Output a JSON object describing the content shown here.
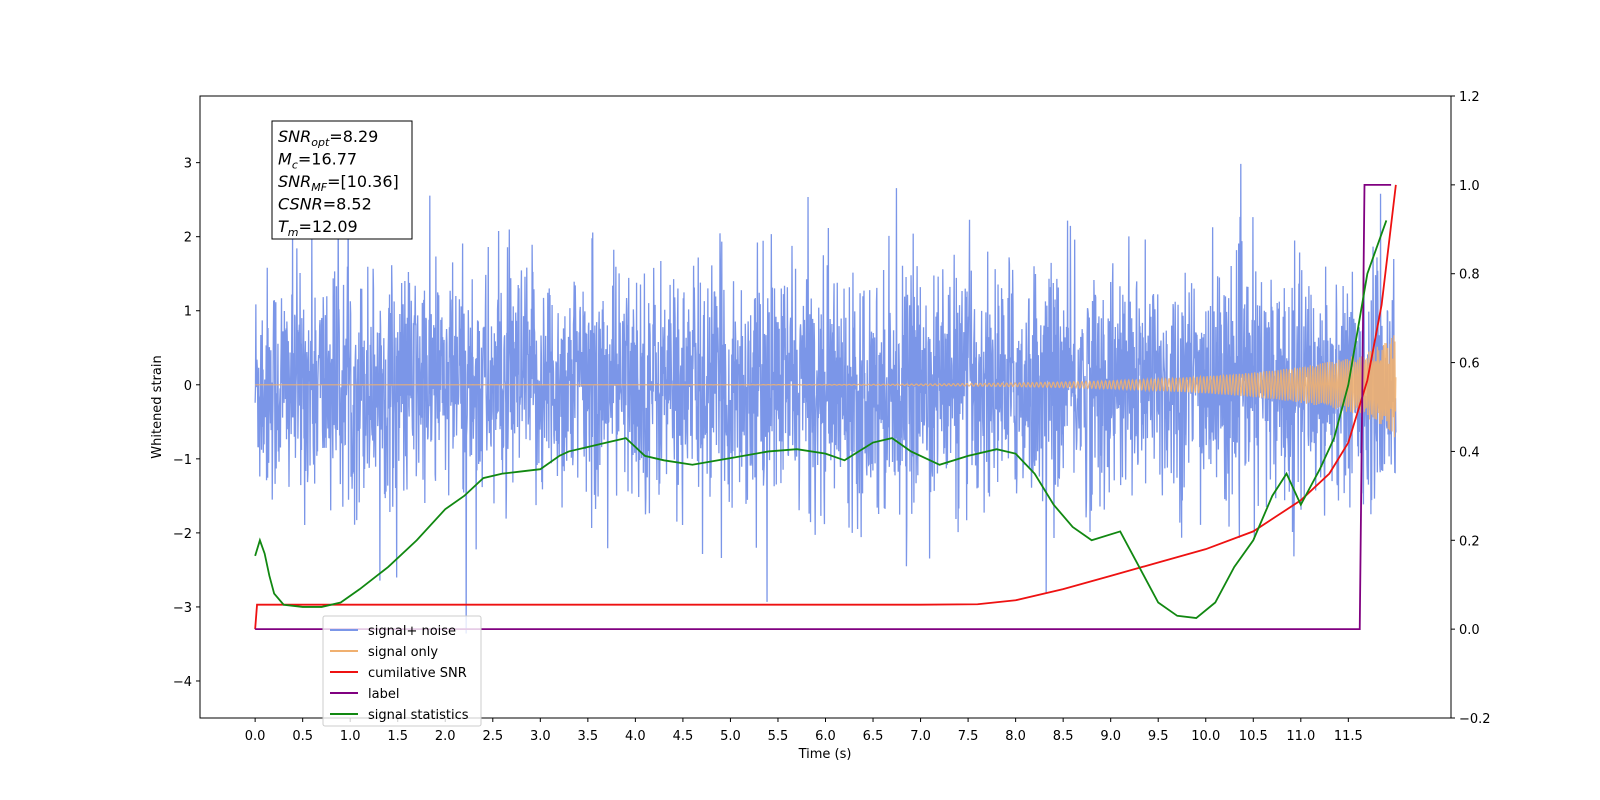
{
  "chart_data": {
    "type": "line",
    "xlabel": "Time (s)",
    "ylabel": "Whitened strain",
    "xlim": [
      -0.58,
      12.58
    ],
    "ylim": [
      -4.5,
      3.9
    ],
    "y2lim": [
      -0.2,
      1.2
    ],
    "grid": false,
    "legend_position": "lower-left",
    "x_ticks": [
      "0.0",
      "0.5",
      "1.0",
      "1.5",
      "2.0",
      "2.5",
      "3.0",
      "3.5",
      "4.0",
      "4.5",
      "5.0",
      "5.5",
      "6.0",
      "6.5",
      "7.0",
      "7.5",
      "8.0",
      "8.5",
      "9.0",
      "9.5",
      "10.0",
      "10.5",
      "11.0",
      "11.5"
    ],
    "y_ticks": [
      "3",
      "2",
      "1",
      "0",
      "−1",
      "−2",
      "−3",
      "−4"
    ],
    "y_tick_values": [
      3,
      2,
      1,
      0,
      -1,
      -2,
      -3,
      -4
    ],
    "y2_ticks": [
      "1.2",
      "1.0",
      "0.8",
      "0.6",
      "0.4",
      "0.2",
      "0.0",
      "−0.2"
    ],
    "y2_tick_values": [
      1.2,
      1.0,
      0.8,
      0.6,
      0.4,
      0.2,
      0.0,
      -0.2
    ],
    "annotation": [
      {
        "main": "SNR",
        "sub": "opt",
        "value": "=8.29"
      },
      {
        "main": "M",
        "sub": "c",
        "value": "=16.77"
      },
      {
        "main": "SNR",
        "sub": "MF",
        "value": "=[10.36]"
      },
      {
        "main": "CSNR",
        "sub": "",
        "value": "=8.52"
      },
      {
        "main": "T",
        "sub": "m",
        "value": "=12.09"
      }
    ],
    "series": [
      {
        "name": "signal+ noise",
        "color": "#7b96e8",
        "axis": "left",
        "description": "noise",
        "noise_std": 0.78,
        "t_end": 12.0
      },
      {
        "name": "signal only",
        "color": "#f0b070",
        "axis": "left",
        "description": "chirp",
        "t_end": 12.0,
        "final_amplitude": 0.75
      },
      {
        "name": "cumilative SNR",
        "color": "#ee1111",
        "axis": "right",
        "x": [
          0.0,
          0.02,
          7.0,
          7.6,
          8.0,
          8.5,
          9.0,
          9.5,
          10.0,
          10.5,
          11.0,
          11.3,
          11.5,
          11.7,
          11.85,
          12.0
        ],
        "y": [
          0.0,
          0.055,
          0.055,
          0.056,
          0.065,
          0.09,
          0.12,
          0.15,
          0.18,
          0.22,
          0.29,
          0.35,
          0.42,
          0.56,
          0.73,
          1.0
        ]
      },
      {
        "name": "label",
        "color": "#800080",
        "axis": "right",
        "x": [
          0.0,
          11.62,
          11.67,
          11.95
        ],
        "y": [
          0.0,
          0.0,
          1.0,
          1.0
        ]
      },
      {
        "name": "signal statistics",
        "color": "#118811",
        "axis": "right",
        "x": [
          0.0,
          0.05,
          0.1,
          0.15,
          0.2,
          0.3,
          0.5,
          0.7,
          0.9,
          1.1,
          1.4,
          1.7,
          2.0,
          2.2,
          2.4,
          2.6,
          2.8,
          3.0,
          3.2,
          3.3,
          3.5,
          3.7,
          3.9,
          4.1,
          4.3,
          4.6,
          5.0,
          5.4,
          5.7,
          6.0,
          6.2,
          6.5,
          6.7,
          6.9,
          7.2,
          7.5,
          7.8,
          8.0,
          8.2,
          8.4,
          8.6,
          8.8,
          9.1,
          9.3,
          9.5,
          9.7,
          9.9,
          10.1,
          10.3,
          10.5,
          10.7,
          10.85,
          11.0,
          11.2,
          11.35,
          11.5,
          11.7,
          11.9
        ],
        "y": [
          0.165,
          0.2,
          0.17,
          0.12,
          0.08,
          0.055,
          0.05,
          0.05,
          0.06,
          0.09,
          0.14,
          0.2,
          0.27,
          0.3,
          0.34,
          0.35,
          0.355,
          0.36,
          0.39,
          0.4,
          0.41,
          0.42,
          0.43,
          0.39,
          0.38,
          0.37,
          0.385,
          0.4,
          0.405,
          0.395,
          0.38,
          0.42,
          0.43,
          0.4,
          0.37,
          0.39,
          0.405,
          0.395,
          0.35,
          0.28,
          0.23,
          0.2,
          0.22,
          0.14,
          0.06,
          0.03,
          0.025,
          0.06,
          0.14,
          0.2,
          0.3,
          0.35,
          0.28,
          0.36,
          0.43,
          0.55,
          0.8,
          0.92
        ]
      }
    ]
  }
}
